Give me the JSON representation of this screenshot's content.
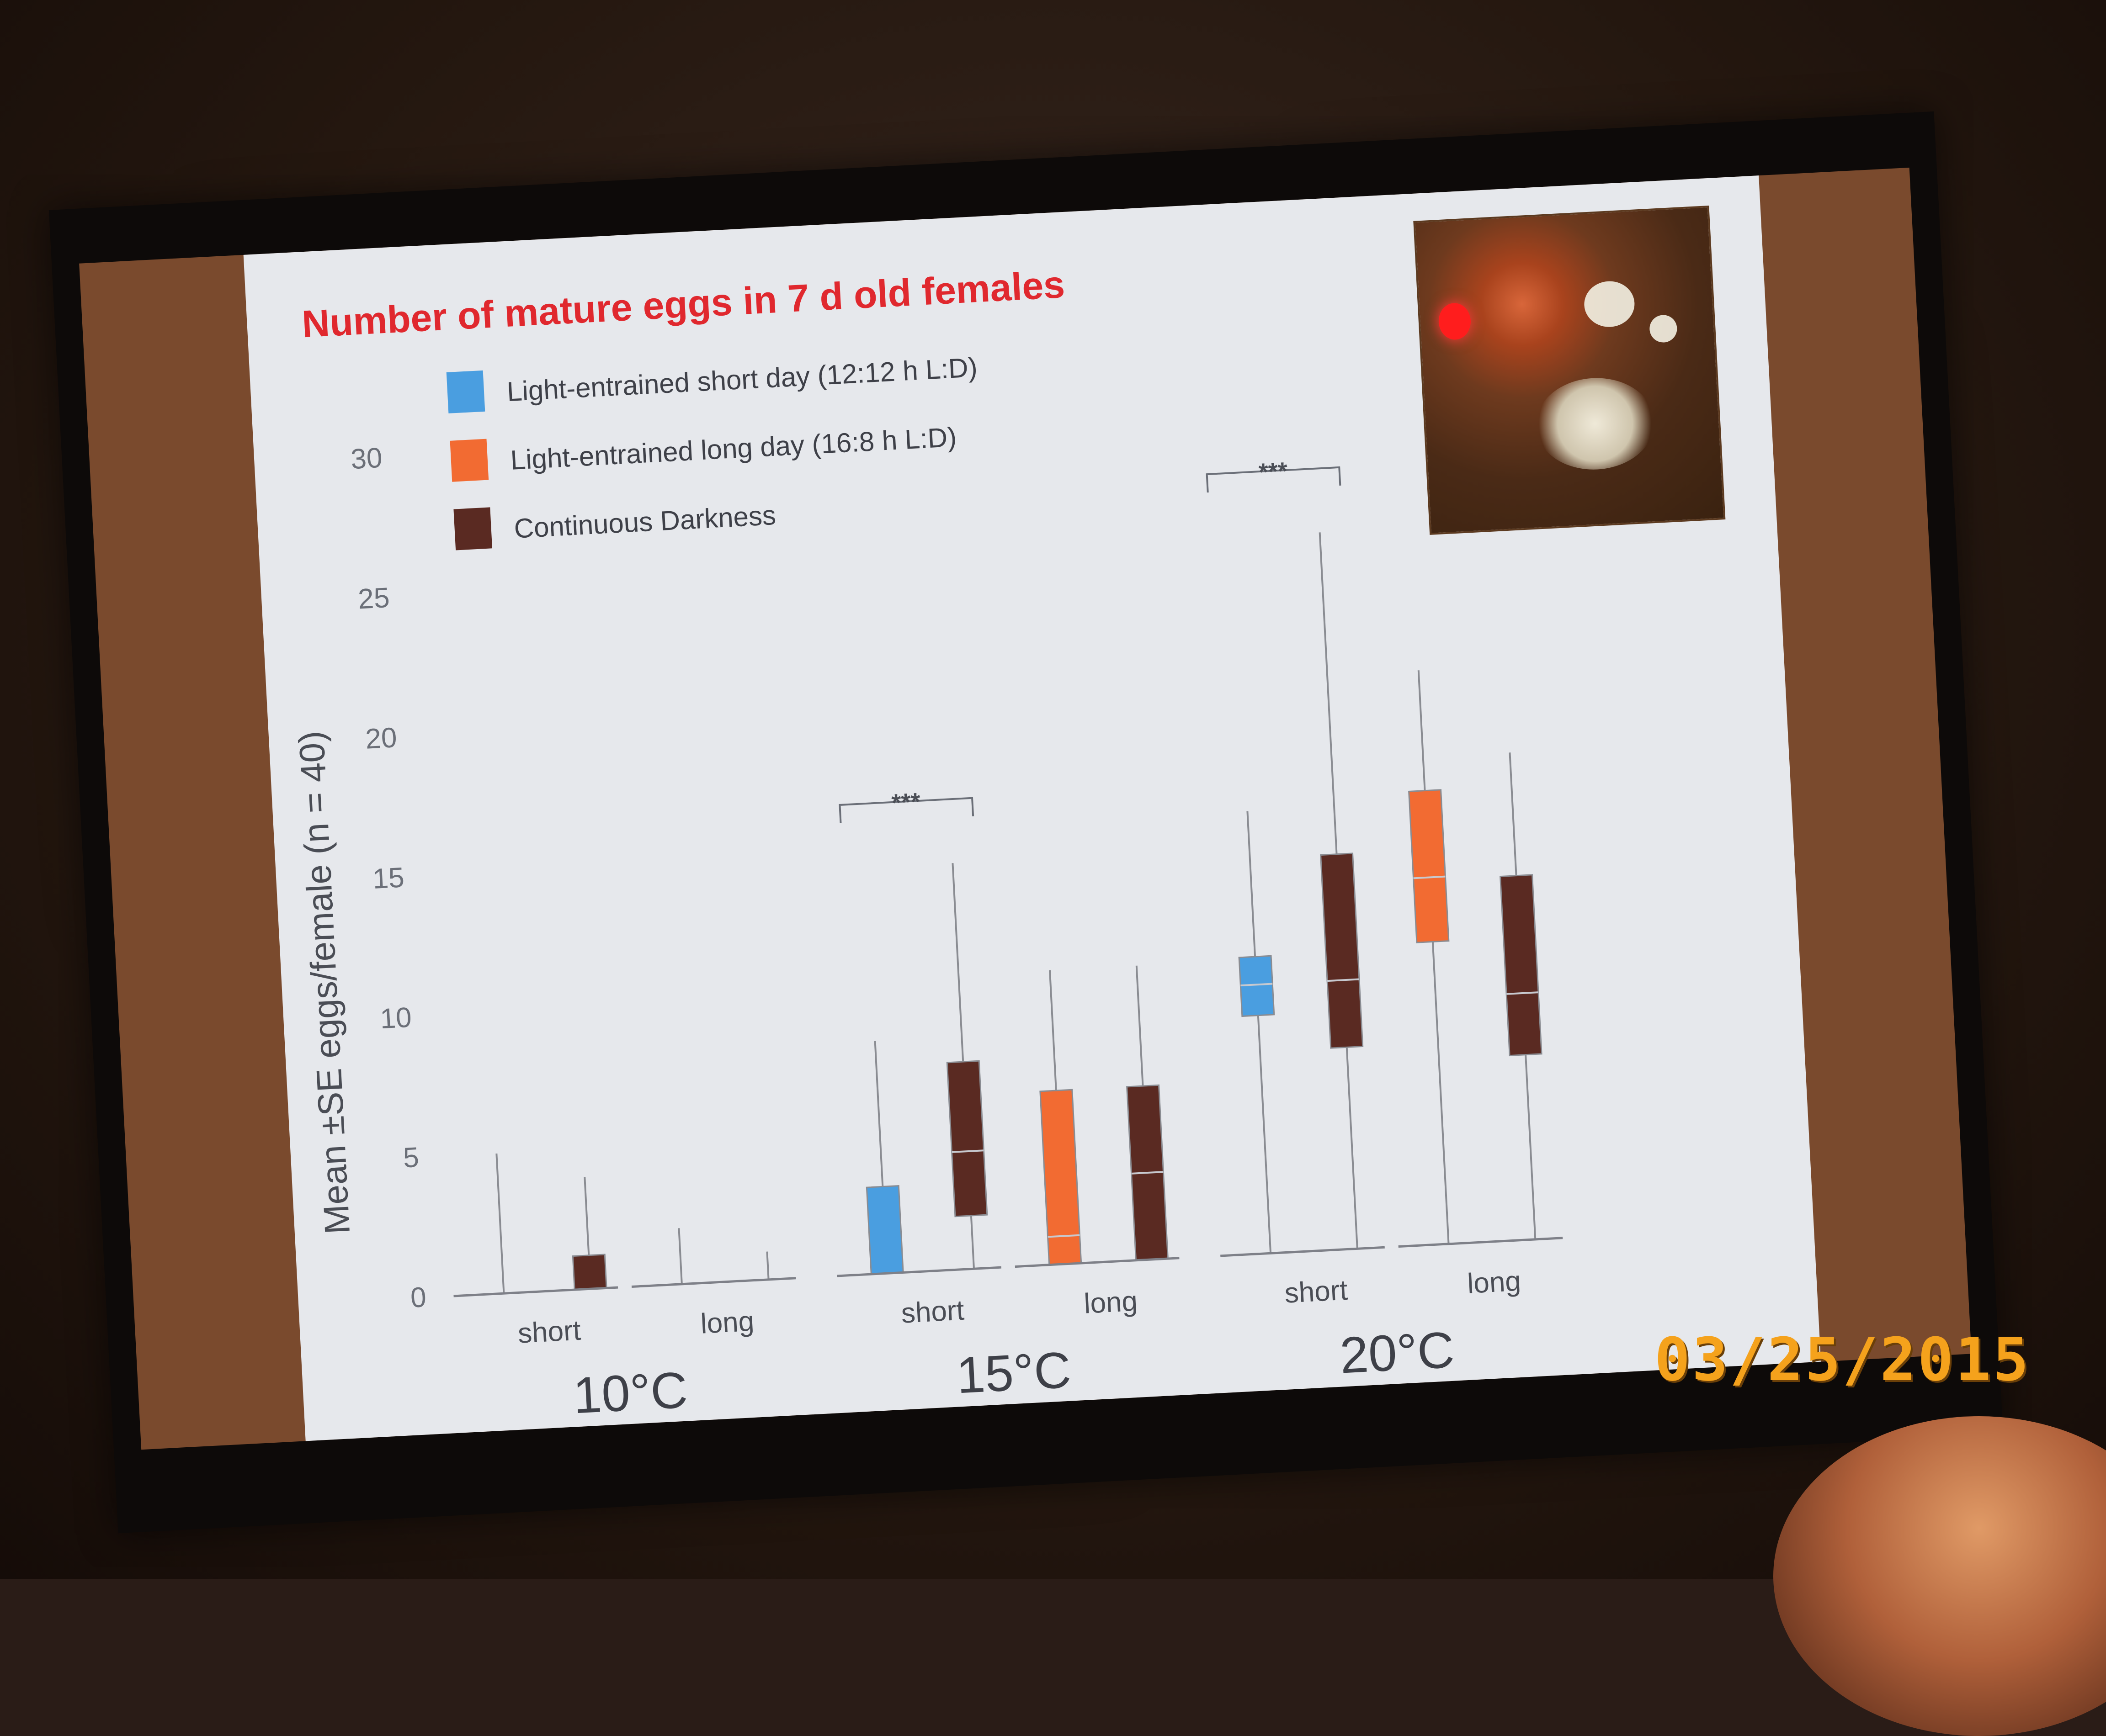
{
  "slide": {
    "title": "Number of mature eggs in 7 d old females"
  },
  "date_stamp": "03/25/2015",
  "colors": {
    "short_day": "#4a9ee0",
    "long_day": "#f26b32",
    "darkness": "#5a2a22",
    "title": "#e0282e",
    "date_stamp": "#f5a21c"
  },
  "chart_data": {
    "type": "box",
    "title": "Number of mature eggs in 7 d old females",
    "xlabel": "",
    "ylabel": "Mean ±SE eggs/female (n = 40)",
    "ylim": [
      0,
      30
    ],
    "yticks": [
      "0",
      "5",
      "10",
      "15",
      "20",
      "25",
      "30"
    ],
    "legend": [
      {
        "name": "Light-entrained short day (12:12 h L:D)",
        "color": "#4a9ee0"
      },
      {
        "name": "Light-entrained long day (16:8 h L:D)",
        "color": "#f26b32"
      },
      {
        "name": "Continuous Darkness",
        "color": "#5a2a22"
      }
    ],
    "legend_position": "top-left",
    "groups": [
      {
        "label": "10°C",
        "subgroups": [
          {
            "label": "short",
            "boxes": [
              {
                "series": 0,
                "q1": 0,
                "median": 0,
                "q3": 0,
                "whisker_low": 0,
                "whisker_high": 5
              },
              {
                "series": 2,
                "q1": 0,
                "median": 0,
                "q3": 1.2,
                "whisker_low": 0,
                "whisker_high": 4
              }
            ]
          },
          {
            "label": "long",
            "boxes": [
              {
                "series": 1,
                "q1": 0,
                "median": 0,
                "q3": 0,
                "whisker_low": 0,
                "whisker_high": 2
              },
              {
                "series": 2,
                "q1": 0,
                "median": 0,
                "q3": 0,
                "whisker_low": 0,
                "whisker_high": 1
              }
            ]
          }
        ]
      },
      {
        "label": "15°C",
        "significance": "***",
        "subgroups": [
          {
            "label": "short",
            "boxes": [
              {
                "series": 0,
                "q1": 0,
                "median": 0,
                "q3": 3.1,
                "whisker_low": 0,
                "whisker_high": 8.3
              },
              {
                "series": 2,
                "q1": 1.9,
                "median": 4.2,
                "q3": 7.4,
                "whisker_low": 0,
                "whisker_high": 14.5
              }
            ]
          },
          {
            "label": "long",
            "boxes": [
              {
                "series": 1,
                "q1": 0,
                "median": 1,
                "q3": 6.2,
                "whisker_low": 0,
                "whisker_high": 10.5
              },
              {
                "series": 2,
                "q1": 0,
                "median": 3.1,
                "q3": 6.2,
                "whisker_low": 0,
                "whisker_high": 10.5
              }
            ]
          }
        ]
      },
      {
        "label": "20°C",
        "significance": "***",
        "subgroups": [
          {
            "label": "short",
            "boxes": [
              {
                "series": 0,
                "q1": 8.5,
                "median": 9.6,
                "q3": 10.6,
                "whisker_low": 0,
                "whisker_high": 15.8
              },
              {
                "series": 2,
                "q1": 7.2,
                "median": 9.6,
                "q3": 14.1,
                "whisker_low": 0,
                "whisker_high": 25.6
              }
            ]
          },
          {
            "label": "long",
            "boxes": [
              {
                "series": 1,
                "q1": 10.8,
                "median": 13.1,
                "q3": 16.2,
                "whisker_low": 0,
                "whisker_high": 20.5
              },
              {
                "series": 2,
                "q1": 6.6,
                "median": 8.8,
                "q3": 13.0,
                "whisker_low": 0,
                "whisker_high": 17.4
              }
            ]
          }
        ]
      }
    ]
  }
}
